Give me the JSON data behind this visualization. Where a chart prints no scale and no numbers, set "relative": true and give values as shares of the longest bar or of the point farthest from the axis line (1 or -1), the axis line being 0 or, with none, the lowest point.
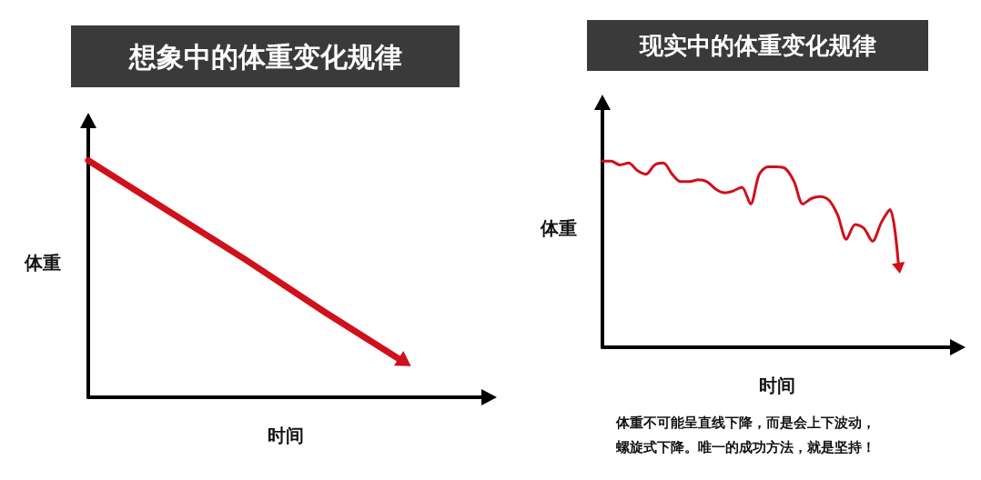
{
  "chart_data": [
    {
      "type": "line",
      "title": "想象中的体重变化规律",
      "xlabel": "时间",
      "ylabel": "体重",
      "relative": true,
      "grid": false,
      "categories": [
        null,
        null,
        null,
        null,
        null,
        null
      ],
      "series": [
        {
          "color": "#d0101b",
          "values": [
            1,
            0.79,
            0.58,
            0.36,
            0.15,
            null
          ]
        }
      ]
    },
    {
      "type": "line",
      "title": "现实中的体重变化规律",
      "xlabel": "时间",
      "ylabel": "体重",
      "relative": true,
      "grid": false,
      "annotations": [
        "体重不可能呈直线下降，而是会上下波动，",
        "螺旋式下降。唯一的成功方法，就是坚持！"
      ],
      "categories": [
        null,
        null,
        null,
        null,
        null,
        null,
        null,
        null,
        null,
        null,
        null,
        null,
        null,
        null,
        null,
        null,
        null,
        null,
        null,
        null,
        null,
        null,
        null,
        null,
        null,
        null,
        null,
        null,
        null,
        null,
        null,
        null,
        null,
        null,
        null,
        null,
        null,
        null,
        null,
        null,
        null
      ],
      "series": [
        {
          "color": "#d0101b",
          "values": [
            1.0,
            1.0,
            0.98,
            0.99,
            0.95,
            0.93,
            0.98,
            0.99,
            0.93,
            0.89,
            0.89,
            0.9,
            0.89,
            0.85,
            0.83,
            0.84,
            0.86,
            0.77,
            0.93,
            0.97,
            0.97,
            0.96,
            0.89,
            0.77,
            0.8,
            0.81,
            0.79,
            0.71,
            0.58,
            0.66,
            0.64,
            0.57,
            0.67,
            0.74,
            0.43,
            null,
            null,
            null,
            null,
            null,
            null
          ]
        }
      ]
    }
  ]
}
